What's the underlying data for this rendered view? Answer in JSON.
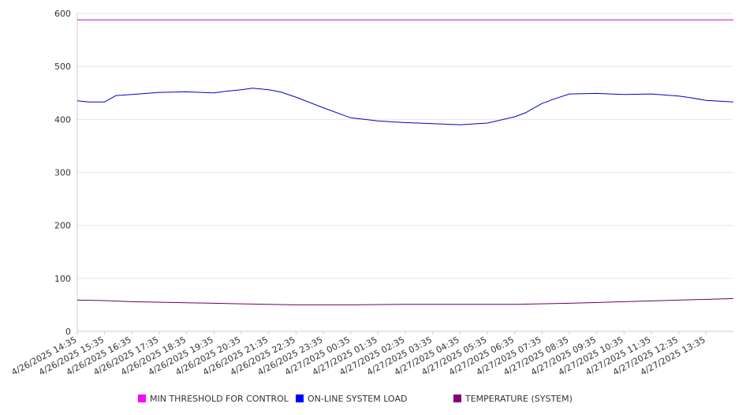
{
  "chart_data": {
    "type": "line",
    "title": "",
    "xlabel": "",
    "ylabel": "",
    "ylim": [
      0,
      600
    ],
    "yticks": [
      0,
      100,
      200,
      300,
      400,
      500,
      600
    ],
    "grid": true,
    "legend_position": "bottom",
    "x_ticks": [
      "4/26/2025 14:35",
      "4/26/2025 15:35",
      "4/26/2025 16:35",
      "4/26/2025 17:35",
      "4/26/2025 18:35",
      "4/26/2025 19:35",
      "4/26/2025 20:35",
      "4/26/2025 21:35",
      "4/26/2025 22:35",
      "4/26/2025 23:35",
      "4/27/2025 00:35",
      "4/27/2025 01:35",
      "4/27/2025 02:35",
      "4/27/2025 03:35",
      "4/27/2025 04:35",
      "4/27/2025 05:35",
      "4/27/2025 06:35",
      "4/27/2025 07:35",
      "4/27/2025 08:35",
      "4/27/2025 09:35",
      "4/27/2025 10:35",
      "4/27/2025 11:35",
      "4/27/2025 12:35",
      "4/27/2025 13:35"
    ],
    "x_end": "4/27/2025 14:35",
    "series": [
      {
        "name": "MIN THRESHOLD FOR CONTROL",
        "color": "#cc00cc",
        "legend_color": "#ff00ff",
        "x": [
          "4/26/2025 14:35",
          "4/26/2025 20:35",
          "4/27/2025 02:35",
          "4/27/2025 08:35",
          "4/27/2025 14:35"
        ],
        "values": [
          588,
          588,
          588,
          588,
          588
        ]
      },
      {
        "name": "ON-LINE SYSTEM LOAD",
        "color": "#0000cc",
        "legend_color": "#0000ff",
        "x": [
          "4/26/2025 14:35",
          "4/26/2025 15:00",
          "4/26/2025 15:35",
          "4/26/2025 16:00",
          "4/26/2025 16:35",
          "4/26/2025 17:35",
          "4/26/2025 18:35",
          "4/26/2025 19:35",
          "4/26/2025 20:00",
          "4/26/2025 20:35",
          "4/26/2025 21:00",
          "4/26/2025 21:35",
          "4/26/2025 22:00",
          "4/26/2025 22:35",
          "4/26/2025 23:35",
          "4/27/2025 00:35",
          "4/27/2025 01:35",
          "4/27/2025 02:35",
          "4/27/2025 03:35",
          "4/27/2025 04:35",
          "4/27/2025 05:35",
          "4/27/2025 06:35",
          "4/27/2025 07:00",
          "4/27/2025 07:35",
          "4/27/2025 08:00",
          "4/27/2025 08:35",
          "4/27/2025 09:35",
          "4/27/2025 10:35",
          "4/27/2025 11:35",
          "4/27/2025 12:35",
          "4/27/2025 13:00",
          "4/27/2025 13:35",
          "4/27/2025 14:35"
        ],
        "values": [
          435,
          433,
          433,
          445,
          447,
          451,
          452,
          450,
          453,
          456,
          459,
          456,
          452,
          442,
          422,
          403,
          397,
          394,
          392,
          390,
          393,
          405,
          413,
          430,
          438,
          448,
          449,
          447,
          448,
          444,
          441,
          436,
          433
        ]
      },
      {
        "name": "TEMPERATURE (SYSTEM)",
        "color": "#660066",
        "legend_color": "#800080",
        "x": [
          "4/26/2025 14:35",
          "4/26/2025 15:35",
          "4/26/2025 16:35",
          "4/26/2025 18:35",
          "4/26/2025 20:35",
          "4/26/2025 22:35",
          "4/27/2025 00:35",
          "4/27/2025 02:35",
          "4/27/2025 04:35",
          "4/27/2025 06:35",
          "4/27/2025 08:35",
          "4/27/2025 10:35",
          "4/27/2025 12:35",
          "4/27/2025 14:35"
        ],
        "values": [
          59,
          58,
          56,
          54,
          52,
          50,
          50,
          51,
          51,
          51,
          53,
          56,
          59,
          62
        ]
      }
    ]
  }
}
